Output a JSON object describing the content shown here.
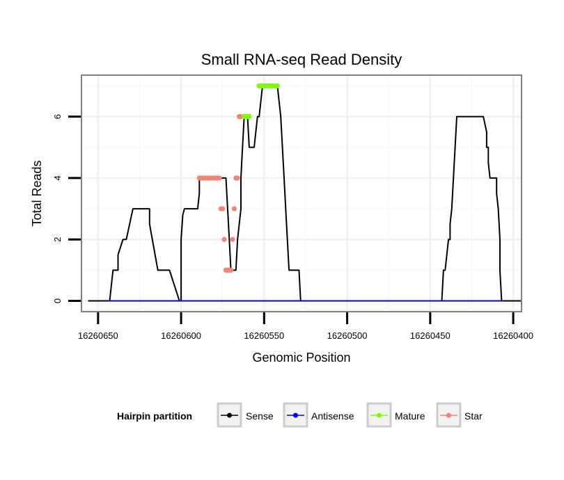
{
  "chart_data": {
    "type": "line",
    "title": "Small RNA-seq Read Density",
    "xlabel": "Genomic Position",
    "ylabel": "Total Reads",
    "xlim": [
      16260660,
      16260395
    ],
    "ylim": [
      -0.35,
      7.35
    ],
    "x_reversed": true,
    "x_ticks": [
      16260650,
      16260600,
      16260550,
      16260500,
      16260450,
      16260400
    ],
    "x_tick_labels": [
      "16260650",
      "16260600",
      "16260550",
      "16260500",
      "16260450",
      "16260400"
    ],
    "y_ticks": [
      0,
      2,
      4,
      6
    ],
    "y_tick_labels": [
      "0",
      "2",
      "4",
      "6"
    ],
    "grid": true,
    "legend": {
      "title": "Hairpin partition",
      "position": "bottom",
      "entries": [
        "Sense",
        "Antisense",
        "Mature",
        "Star"
      ]
    },
    "series": [
      {
        "name": "Sense",
        "color": "#000000",
        "kind": "line",
        "x": [
          16260656,
          16260643,
          16260642,
          16260641,
          16260641,
          16260638,
          16260638,
          16260635,
          16260633,
          16260633,
          16260629,
          16260625,
          16260621,
          16260619,
          16260619,
          16260614,
          16260612,
          16260607,
          16260601,
          16260600,
          16260600,
          16260599,
          16260598,
          16260597,
          16260593,
          16260590,
          16260589,
          16260589,
          16260588,
          16260587,
          16260585,
          16260584,
          16260583,
          16260582,
          16260581,
          16260578,
          16260577,
          16260576,
          16260575,
          16260574,
          16260573,
          16260572,
          16260572,
          16260571,
          16260570,
          16260569,
          16260568,
          16260567,
          16260566,
          16260564,
          16260564,
          16260563,
          16260562,
          16260560,
          16260559,
          16260557,
          16260556,
          16260554,
          16260553,
          16260551,
          16260549,
          16260548,
          16260547,
          16260546,
          16260545,
          16260544,
          16260543,
          16260542,
          16260541,
          16260540,
          16260539,
          16260538,
          16260537,
          16260536,
          16260535,
          16260534,
          16260533,
          16260532,
          16260529,
          16260528,
          16260500,
          16260450,
          16260443,
          16260442,
          16260441,
          16260440,
          16260439,
          16260438,
          16260438,
          16260437,
          16260436,
          16260435,
          16260434,
          16260433,
          16260432,
          16260431,
          16260430,
          16260429,
          16260428,
          16260427,
          16260425,
          16260418,
          16260416,
          16260416,
          16260415,
          16260415,
          16260414,
          16260413,
          16260410,
          16260410,
          16260409,
          16260409,
          16260408,
          16260408,
          16260407,
          16260406,
          16260405,
          16260395
        ],
        "y": [
          0,
          0,
          0.5,
          1,
          1,
          1,
          1.5,
          2,
          2,
          2,
          3,
          3,
          3,
          3,
          2.5,
          1,
          1,
          1,
          0,
          0,
          2,
          2.8,
          3,
          3,
          3,
          3,
          3.5,
          4,
          4,
          4,
          4,
          4,
          4,
          4,
          4,
          4,
          4,
          4,
          4,
          4,
          4,
          3,
          3,
          2,
          1,
          1,
          1,
          1,
          2,
          3,
          4,
          5,
          6,
          6,
          5,
          5,
          5,
          6,
          6,
          7,
          7,
          7,
          7,
          7,
          7,
          7,
          7,
          7,
          6.5,
          6,
          5,
          4,
          3,
          2,
          1,
          1,
          1,
          1,
          1,
          0,
          0,
          0,
          0,
          1,
          1,
          1.5,
          2,
          2,
          2.5,
          3,
          4,
          5,
          6,
          6,
          6,
          6,
          6,
          6,
          6,
          6,
          6,
          6,
          5.5,
          5,
          5,
          4.5,
          4,
          4,
          4,
          3.5,
          3,
          3,
          2,
          1,
          0,
          0,
          0,
          0
        ]
      },
      {
        "name": "Antisense",
        "color": "#0000ff",
        "kind": "line",
        "x": [
          16260644,
          16260406
        ],
        "y": [
          0,
          0
        ]
      },
      {
        "name": "Mature",
        "color": "#7cfc00",
        "kind": "points",
        "x": [
          16260553,
          16260552,
          16260551,
          16260550,
          16260549,
          16260548,
          16260547,
          16260546,
          16260545,
          16260544,
          16260543,
          16260542,
          16260562,
          16260561,
          16260560,
          16260559
        ],
        "y": [
          7,
          7,
          7,
          7,
          7,
          7,
          7,
          7,
          7,
          7,
          7,
          7,
          6,
          6,
          6,
          6
        ]
      },
      {
        "name": "Star",
        "color": "#fa8072",
        "kind": "points",
        "x": [
          16260589,
          16260588,
          16260587,
          16260586,
          16260585,
          16260584,
          16260583,
          16260582,
          16260581,
          16260580,
          16260579,
          16260578,
          16260577,
          16260576,
          16260575,
          16260574,
          16260573,
          16260572,
          16260571,
          16260570,
          16260569,
          16260568,
          16260567,
          16260566,
          16260565,
          16260564,
          16260564
        ],
        "y": [
          4,
          4,
          4,
          4,
          4,
          4,
          4,
          4,
          4,
          4,
          4,
          4,
          4,
          3,
          3,
          2,
          1,
          1,
          1,
          1,
          2,
          3,
          4,
          4,
          6,
          6,
          6
        ]
      }
    ]
  }
}
